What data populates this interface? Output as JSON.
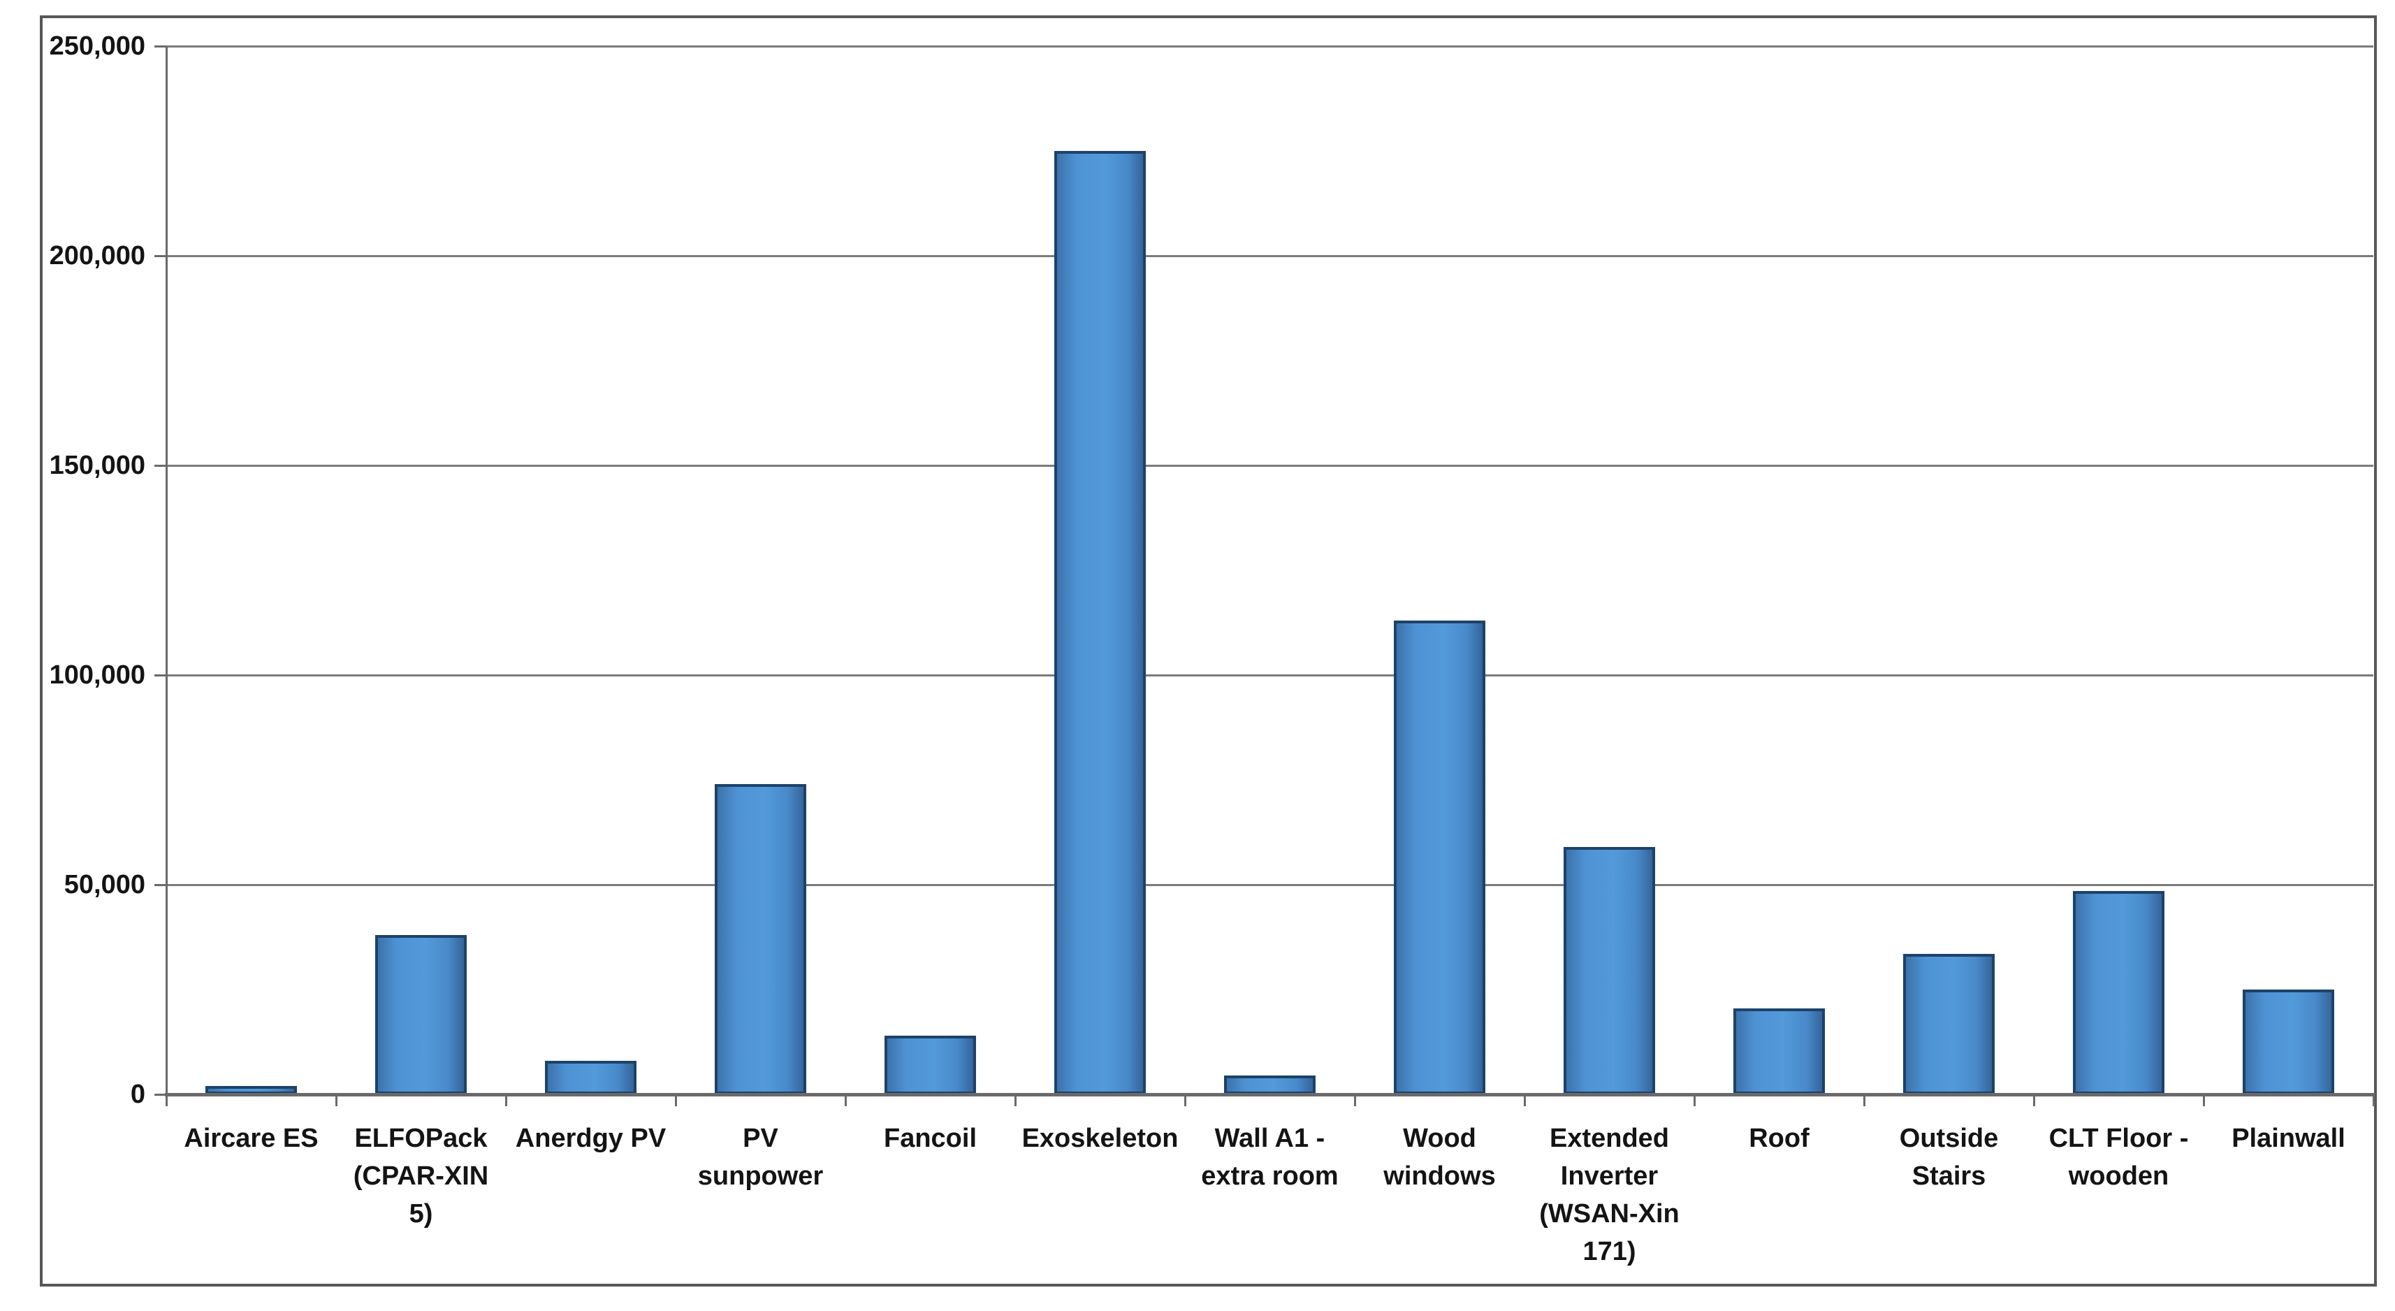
{
  "chart_data": {
    "type": "bar",
    "title": "",
    "legend": "none",
    "grid": "horizontal gridlines every 50,000",
    "xlabel": "",
    "ylabel": "",
    "ylim": [
      0,
      250000
    ],
    "ytick_step": 50000,
    "yticks": [
      {
        "value": 0,
        "label": "0"
      },
      {
        "value": 50000,
        "label": "50,000"
      },
      {
        "value": 100000,
        "label": "100,000"
      },
      {
        "value": 150000,
        "label": "150,000"
      },
      {
        "value": 200000,
        "label": "200,000"
      },
      {
        "value": 250000,
        "label": "250,000"
      }
    ],
    "categories": [
      "Aircare ES",
      "ELFOPack (CPAR-XIN 5)",
      "Anerdgy PV",
      "PV sunpower",
      "Fancoil",
      "Exoskeleton",
      "Wall A1 - extra room",
      "Wood windows",
      "Extended Inverter (WSAN-Xin 171)",
      "Roof",
      "Outside Stairs",
      "CLT Floor - wooden",
      "Plainwall"
    ],
    "category_labels_wrapped": [
      "Aircare ES",
      "ELFOPack\n(CPAR-XIN\n5)",
      "Anerdgy PV",
      "PV\nsunpower",
      "Fancoil",
      "Exoskeleton",
      "Wall A1 -\nextra room",
      "Wood\nwindows",
      "Extended\nInverter\n(WSAN-Xin\n171)",
      "Roof",
      "Outside\nStairs",
      "CLT Floor -\nwooden",
      "Plainwall"
    ],
    "values": [
      2000,
      38000,
      8000,
      74000,
      14000,
      225000,
      4500,
      113000,
      59000,
      20500,
      33500,
      48500,
      25000
    ],
    "colors": {
      "bar_fill": "#4e92d4",
      "bar_fill_edge_shade": "#34659b",
      "bar_border": "#1d4269",
      "gridline": "#7b7b7b",
      "axis_line": "#6a6a6a",
      "frame_border": "#575757",
      "text": "#141414",
      "background": "#ffffff"
    }
  }
}
